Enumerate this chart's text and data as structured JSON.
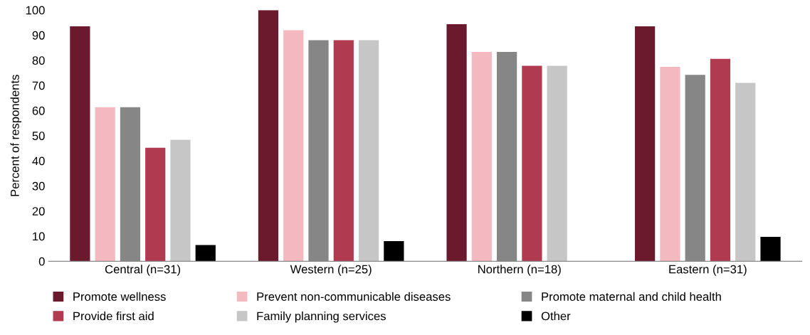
{
  "chart_data": {
    "type": "bar",
    "ylabel": "Percent of respondents",
    "categories": [
      "Central (n=31)",
      "Western (n=25)",
      "Northern (n=18)",
      "Eastern (n=31)"
    ],
    "series": [
      {
        "name": "Promote wellness",
        "color": "#6b1a2e",
        "values": [
          93.5,
          100,
          94.4,
          93.5
        ]
      },
      {
        "name": "Prevent non-communicable diseases",
        "color": "#f4b9c0",
        "values": [
          61.3,
          92,
          83.3,
          77.4
        ]
      },
      {
        "name": "Promote maternal and child health",
        "color": "#868686",
        "values": [
          61.3,
          88,
          83.3,
          74.2
        ]
      },
      {
        "name": "Provide first aid",
        "color": "#b03a50",
        "values": [
          45.2,
          88,
          77.8,
          80.6
        ]
      },
      {
        "name": "Family planning services",
        "color": "#c6c6c6",
        "values": [
          48.4,
          88,
          77.8,
          71.0
        ]
      },
      {
        "name": "Other",
        "color": "#000000",
        "values": [
          6.5,
          8,
          0,
          9.7
        ]
      }
    ],
    "ylim": [
      0,
      100
    ],
    "yticks": [
      0,
      10,
      20,
      30,
      40,
      50,
      60,
      70,
      80,
      90,
      100
    ],
    "grid": false,
    "legend": "bottom"
  }
}
